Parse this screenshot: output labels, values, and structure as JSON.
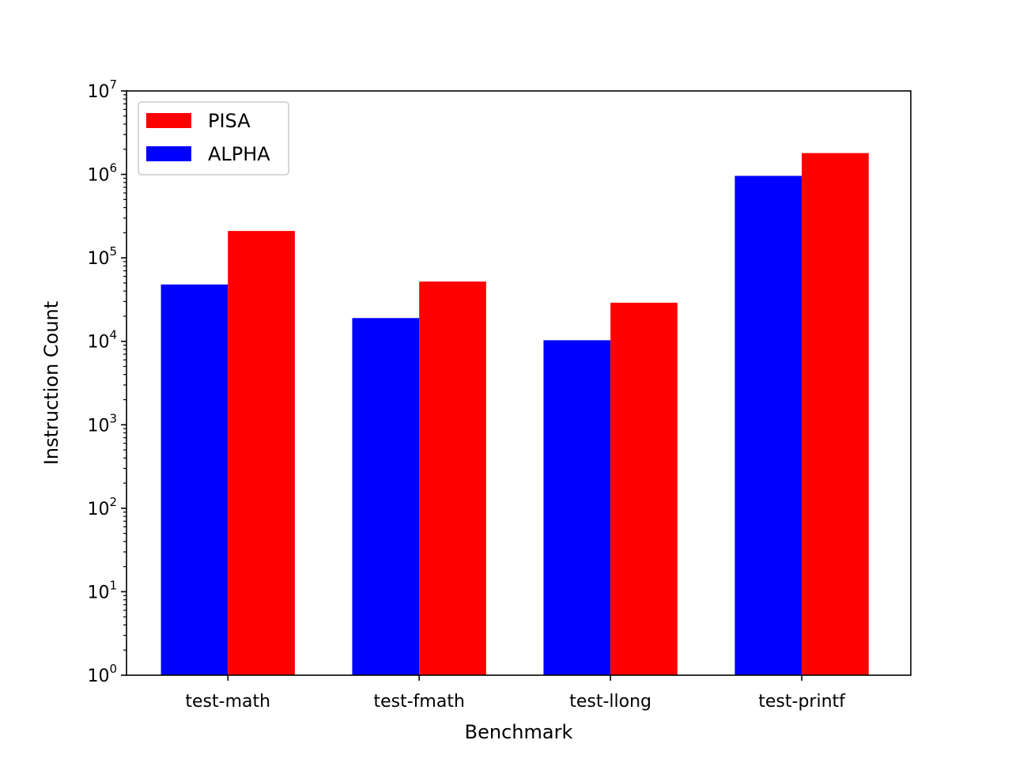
{
  "chart_data": {
    "type": "bar",
    "title": "",
    "xlabel": "Benchmark",
    "ylabel": "Instruction Count",
    "yscale": "log",
    "ylim": [
      1,
      10000000
    ],
    "y_ticks": [
      {
        "value": 1,
        "base": "10",
        "exp": "0"
      },
      {
        "value": 10,
        "base": "10",
        "exp": "1"
      },
      {
        "value": 100,
        "base": "10",
        "exp": "2"
      },
      {
        "value": 1000,
        "base": "10",
        "exp": "3"
      },
      {
        "value": 10000,
        "base": "10",
        "exp": "4"
      },
      {
        "value": 100000,
        "base": "10",
        "exp": "5"
      },
      {
        "value": 1000000,
        "base": "10",
        "exp": "6"
      },
      {
        "value": 10000000,
        "base": "10",
        "exp": "7"
      }
    ],
    "categories": [
      "test-math",
      "test-fmath",
      "test-llong",
      "test-printf"
    ],
    "series": [
      {
        "name": "ALPHA",
        "color": "#0000ff",
        "values": [
          48000,
          19000,
          10300,
          960000
        ]
      },
      {
        "name": "PISA",
        "color": "#ff0000",
        "values": [
          210000,
          52000,
          29000,
          1800000
        ]
      }
    ],
    "legend": {
      "position": "upper-left",
      "entries": [
        {
          "label": "PISA",
          "color": "#ff0000"
        },
        {
          "label": "ALPHA",
          "color": "#0000ff"
        }
      ]
    },
    "grid": false
  }
}
